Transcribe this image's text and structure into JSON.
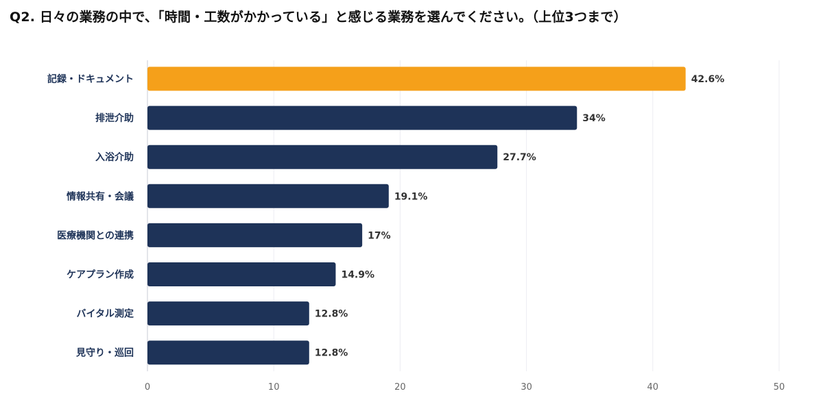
{
  "chart_data": {
    "type": "bar",
    "orientation": "horizontal",
    "title": "Q2. 日々の業務の中で、「時間・工数がかかっている」と感じる業務を選んでください。（上位3つまで）",
    "categories": [
      "記録・ドキュメント",
      "排泄介助",
      "入浴介助",
      "情報共有・会議",
      "医療機関との連携",
      "ケアプラン作成",
      "バイタル測定",
      "見守り・巡回"
    ],
    "values": [
      42.6,
      34,
      27.7,
      19.1,
      17,
      14.9,
      12.8,
      12.8
    ],
    "value_labels": [
      "42.6%",
      "34%",
      "27.7%",
      "19.1%",
      "17%",
      "14.9%",
      "12.8%",
      "12.8%"
    ],
    "xlim": [
      0,
      50
    ],
    "xticks": [
      0,
      10,
      20,
      30,
      40,
      50
    ],
    "xlabel": "",
    "ylabel": "",
    "grid": true,
    "highlight_index": 0,
    "colors": {
      "highlight": "#f5a01a",
      "bar": "#1e3358",
      "grid": "#ececf2",
      "axis": "#c9cbd6"
    }
  }
}
